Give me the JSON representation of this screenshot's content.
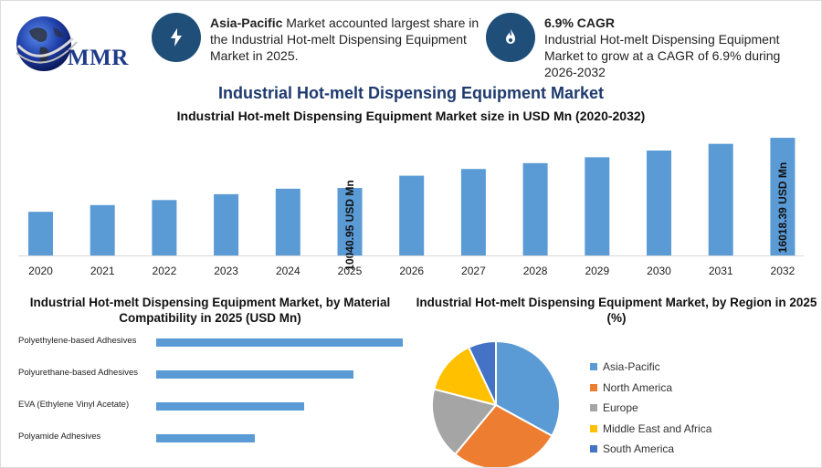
{
  "logo": {
    "text": "MMR"
  },
  "kpis": [
    {
      "bold": "Asia-Pacific",
      "rest": " Market accounted largest share in the Industrial Hot-melt Dispensing Equipment Market in 2025.",
      "icon": "lightning-icon"
    },
    {
      "bold": "6.9% CAGR",
      "rest": "Industrial Hot-melt Dispensing Equipment Market to grow at a CAGR of 6.9% during 2026-2032",
      "icon": "flame-drop-icon"
    }
  ],
  "header": {
    "title": "Industrial Hot-melt Dispensing Equipment Market",
    "subtitle": "Industrial Hot-melt Dispensing Equipment Market size in USD Mn (2020-2032)"
  },
  "material_title": "Industrial Hot-melt Dispensing Equipment Market, by Material Compatibility in 2025 (USD Mn)",
  "region_title": "Industrial Hot-melt Dispensing Equipment Market, by Region in 2025 (%)",
  "colors": {
    "bar": "#5b9bd5",
    "dark": "#1f4e79",
    "title": "#1e3a6e"
  },
  "chart_data": [
    {
      "type": "bar",
      "title": "Industrial Hot-melt Dispensing Equipment Market size in USD Mn (2020-2032)",
      "categories": [
        "2020",
        "2021",
        "2022",
        "2023",
        "2024",
        "2025",
        "2026",
        "2027",
        "2028",
        "2029",
        "2030",
        "2031",
        "2032"
      ],
      "values": [
        7200,
        8000,
        8600,
        9300,
        9950,
        10040.95,
        11500,
        12300,
        13000,
        13700,
        14500,
        15300,
        16018.39
      ],
      "data_labels": {
        "5": "10040.95 USD Mn",
        "12": "16018.39 USD Mn"
      },
      "ylim": [
        2000,
        17000
      ],
      "grid": false
    },
    {
      "type": "bar",
      "orientation": "horizontal",
      "title": "Industrial Hot-melt Dispensing Equipment Market, by Material Compatibility in 2025 (USD Mn)",
      "categories": [
        "Polyethylene-based Adhesives",
        "Polyurethane-based Adhesives",
        "EVA (Ethylene Vinyl Acetate)",
        "Polyamide Adhesives"
      ],
      "values": [
        100,
        80,
        60,
        40
      ],
      "xlim": [
        0,
        100
      ]
    },
    {
      "type": "pie",
      "title": "Industrial Hot-melt Dispensing Equipment Market, by Region in 2025 (%)",
      "categories": [
        "Asia-Pacific",
        "North America",
        "Europe",
        "Middle East and Africa",
        "South America"
      ],
      "values": [
        33,
        28,
        18,
        14,
        7
      ],
      "colors": [
        "#5b9bd5",
        "#ed7d31",
        "#a5a5a5",
        "#ffc000",
        "#4472c4"
      ],
      "legend": "right"
    }
  ]
}
